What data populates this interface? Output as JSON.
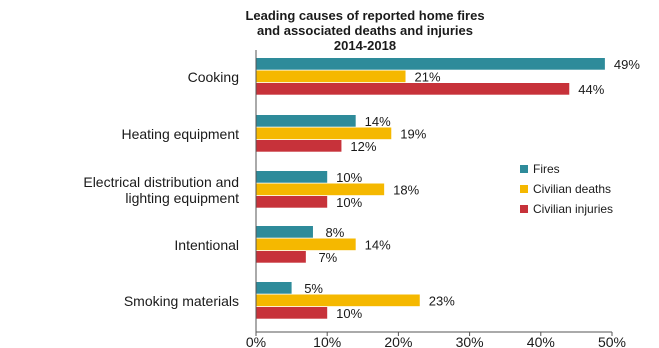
{
  "chart_data": {
    "type": "bar",
    "orientation": "horizontal",
    "title": [
      "Leading causes of reported home fires",
      "and associated deaths and injuries",
      "2014-2018"
    ],
    "categories": [
      [
        "Cooking"
      ],
      [
        "Heating equipment"
      ],
      [
        "Electrical distribution and",
        "lighting equipment"
      ],
      [
        "Intentional"
      ],
      [
        "Smoking materials"
      ]
    ],
    "series": [
      {
        "name": "Fires",
        "color": "#2e8b9a",
        "values": [
          49,
          14,
          10,
          8,
          5
        ],
        "labels": [
          "49%",
          "14%",
          "10%",
          "8%",
          "5%"
        ]
      },
      {
        "name": "Civilian deaths",
        "color": "#f5b800",
        "values": [
          21,
          19,
          18,
          14,
          23
        ],
        "labels": [
          "21%",
          "19%",
          "18%",
          "14%",
          "23%"
        ]
      },
      {
        "name": "Civilian injuries",
        "color": "#c7323a",
        "values": [
          44,
          12,
          10,
          7,
          10
        ],
        "labels": [
          "44%",
          "12%",
          "10%",
          "7%",
          "10%"
        ]
      }
    ],
    "xlim": [
      0,
      50
    ],
    "xticks": [
      "0%",
      "10%",
      "20%",
      "30%",
      "40%",
      "50%"
    ],
    "legend_position": "right",
    "grid": false
  }
}
